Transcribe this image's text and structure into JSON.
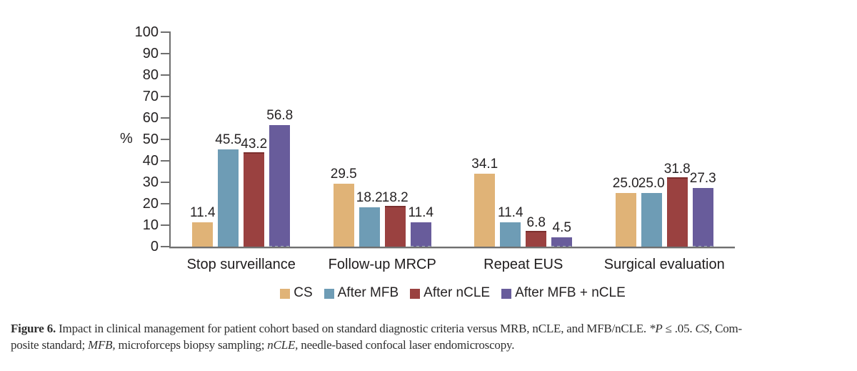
{
  "chart_data": {
    "type": "bar",
    "title": "",
    "xlabel": "",
    "ylabel": "%",
    "ylim": [
      0,
      100
    ],
    "ytick_step": 10,
    "grid": false,
    "legend_position": "bottom",
    "value_labels": "one-decimal",
    "categories": [
      "Stop surveillance",
      "Follow-up MRCP",
      "Repeat EUS",
      "Surgical evaluation"
    ],
    "series": [
      {
        "name": "CS",
        "color": "#e0b377",
        "values": [
          11.4,
          29.5,
          34.1,
          25.0
        ]
      },
      {
        "name": "After MFB",
        "color": "#6e9cb5",
        "values": [
          45.5,
          18.2,
          11.4,
          25.0
        ]
      },
      {
        "name": "After nCLE",
        "color": "#9a4140",
        "cap_color": "#7c2f2e",
        "values": [
          43.2,
          18.2,
          6.8,
          31.8
        ]
      },
      {
        "name": "After MFB + nCLE",
        "color": "#685c9b",
        "base_dash_color": "#a9b6c9",
        "values": [
          56.8,
          11.4,
          4.5,
          27.3
        ]
      }
    ]
  },
  "colors": {
    "axis": "#6f6f6f",
    "chart_text": "#262324",
    "caption_text": "#2f2f2f",
    "background": "#ffffff"
  },
  "caption": {
    "lines": [
      {
        "segments": [
          {
            "text": "Figure 6.",
            "style": "bold"
          },
          {
            "text": " Impact in clinical management for patient cohort based on standard diagnostic criteria versus MRB, nCLE, and MFB/nCLE. ",
            "style": "normal"
          },
          {
            "text": "*P",
            "style": "italic"
          },
          {
            "text": " ≤ .05. ",
            "style": "normal"
          },
          {
            "text": "CS,",
            "style": "italic"
          },
          {
            "text": " Com-",
            "style": "normal"
          }
        ]
      },
      {
        "segments": [
          {
            "text": "posite standard; ",
            "style": "normal"
          },
          {
            "text": "MFB,",
            "style": "italic"
          },
          {
            "text": " microforceps biopsy sampling; ",
            "style": "normal"
          },
          {
            "text": "nCLE,",
            "style": "italic"
          },
          {
            "text": " needle-based confocal laser endomicroscopy.",
            "style": "normal"
          }
        ]
      }
    ]
  }
}
